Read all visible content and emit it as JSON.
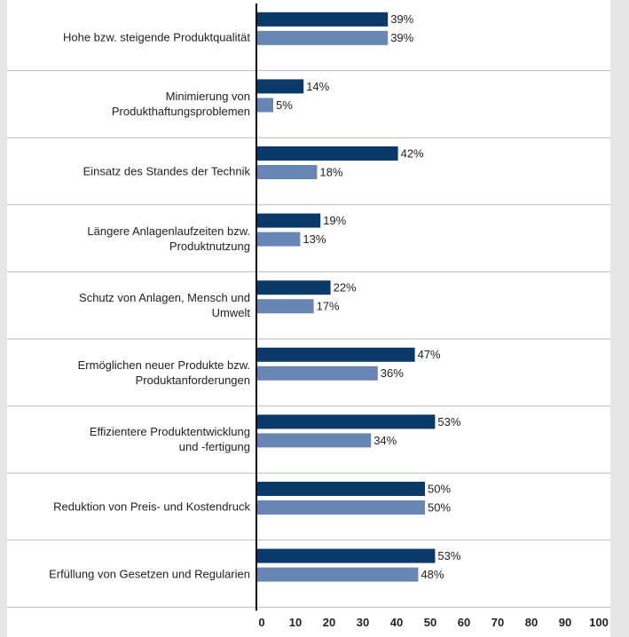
{
  "chart_data": {
    "type": "bar",
    "orientation": "horizontal",
    "categories": [
      "Hohe bzw. steigende  Produktqualität",
      "Minimierung von\nProdukthaftungsproblemen",
      "Einsatz des Standes der Technik",
      "Längere Anlagenlaufzeiten bzw.\nProduktnutzung",
      "Schutz von Anlagen, Mensch und \nUmwelt",
      "Ermöglichen neuer Produkte bzw.\nProduktanforderungen",
      "Effizientere Produktentwicklung\nund -fertigung",
      "Reduktion von Preis- und Kostendruck",
      "Erfüllung von Gesetzen und Regularien"
    ],
    "series": [
      {
        "color": "#0b3a6a",
        "values": [
          39,
          14,
          42,
          19,
          22,
          47,
          53,
          50,
          53
        ],
        "value_labels": [
          "39%",
          "14%",
          "42%",
          "19%",
          "22%",
          "47%",
          "53%",
          "50%",
          "53%"
        ]
      },
      {
        "color": "#6886b4",
        "values": [
          39,
          5,
          18,
          13,
          17,
          36,
          34,
          50,
          48
        ],
        "value_labels": [
          "39%",
          "5%",
          "18%",
          "13%",
          "17%",
          "36%",
          "34%",
          "50%",
          "48%"
        ]
      }
    ],
    "xlim": [
      0,
      100
    ],
    "xticks": [
      0,
      10,
      20,
      30,
      40,
      50,
      60,
      70,
      80,
      90,
      100
    ]
  }
}
